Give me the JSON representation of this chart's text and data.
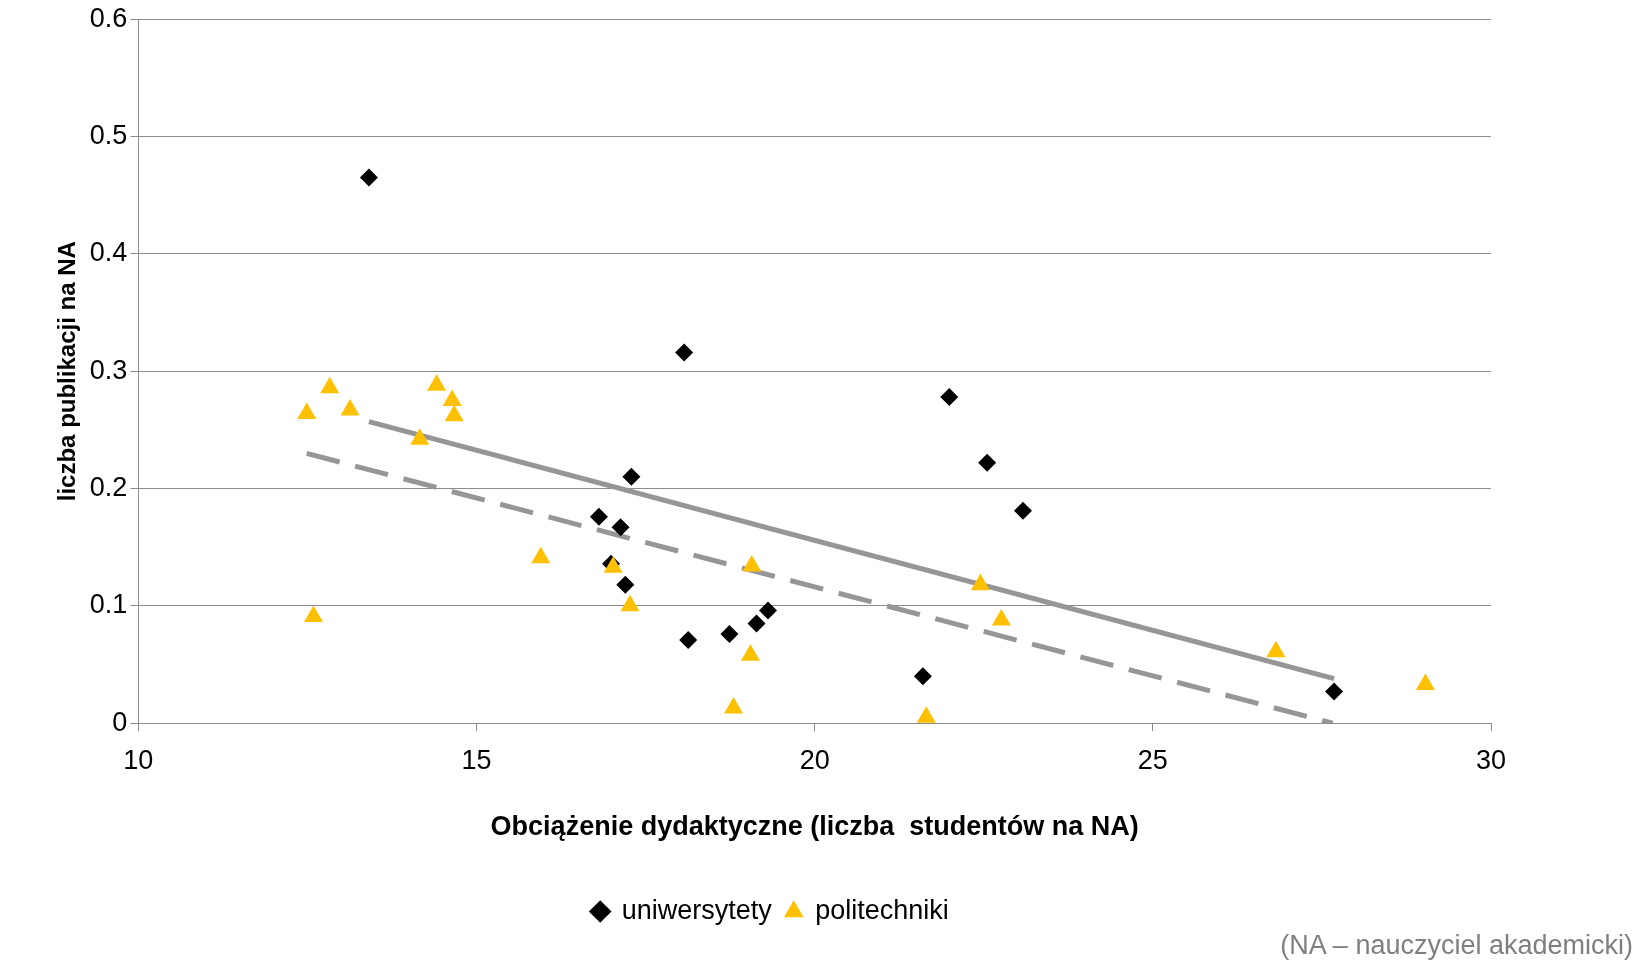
{
  "chart_data": {
    "type": "scatter",
    "xlabel": "Obciążenie dydaktyczne (liczba  studentów na NA)",
    "ylabel": "liczba publikacji na NA",
    "xlim": [
      10,
      30
    ],
    "xticks": [
      10,
      15,
      20,
      25,
      30
    ],
    "ylim": [
      0,
      0.6
    ],
    "yticks": [
      0,
      0.1,
      0.2,
      0.3,
      0.4,
      0.5,
      0.6
    ],
    "grid": "y",
    "legend": "bottom",
    "annotations": [
      "(NA – nauczyciel akademicki)"
    ],
    "series": [
      {
        "name": "uniwersytety",
        "color": "#000000",
        "marker": "diamond",
        "x": [
          13.41,
          18.07,
          17.29,
          16.81,
          17.13,
          16.99,
          17.2,
          18.13,
          18.74,
          19.14,
          19.31,
          21.99,
          22.55,
          23.08,
          21.6,
          27.68
        ],
        "values": [
          0.465,
          0.316,
          0.21,
          0.176,
          0.167,
          0.136,
          0.118,
          0.071,
          0.076,
          0.085,
          0.096,
          0.278,
          0.222,
          0.181,
          0.04,
          0.027
        ]
      },
      {
        "name": "politechniki",
        "color": "#ffc000",
        "marker": "triangle",
        "x": [
          12.49,
          12.83,
          13.13,
          12.59,
          14.41,
          14.64,
          14.67,
          14.16,
          15.95,
          17.02,
          17.27,
          19.07,
          19.05,
          18.8,
          21.65,
          22.45,
          22.76,
          26.82,
          29.03
        ],
        "values": [
          0.264,
          0.286,
          0.267,
          0.091,
          0.288,
          0.275,
          0.262,
          0.242,
          0.141,
          0.133,
          0.1,
          0.134,
          0.058,
          0.013,
          0.005,
          0.118,
          0.088,
          0.061,
          0.033
        ]
      },
      {
        "type": "line",
        "color": "#969696",
        "marker": "none",
        "line_style": "solid",
        "x": [
          13.41,
          27.68
        ],
        "values": [
          0.257,
          0.038
        ]
      },
      {
        "type": "line",
        "color": "#969696",
        "marker": "none",
        "line_style": "dashed",
        "x": [
          12.49,
          27.66
        ],
        "values": [
          0.23,
          0
        ]
      }
    ]
  }
}
